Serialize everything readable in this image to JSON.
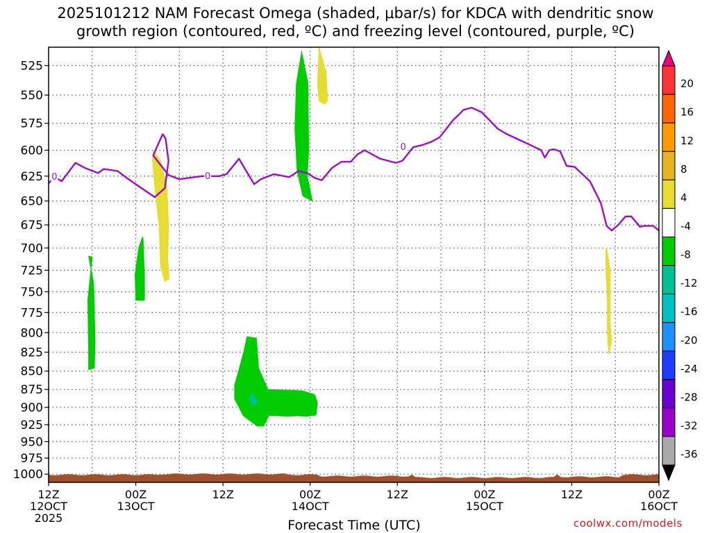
{
  "title": {
    "line1": "2025101212 NAM Forecast Omega (shaded, μbar/s) for KDCA with dendritic snow",
    "line2": "growth region (contoured, red, ºC) and freezing level (contoured, purple, ºC)"
  },
  "credit": "coolwx.com/models",
  "chart_data": {
    "type": "time-height",
    "xlabel": "Forecast Time (UTC)",
    "ylabel": "",
    "ylim": [
      1013,
      510
    ],
    "yscale": "log-pressure",
    "y_ticks": [
      525,
      550,
      575,
      600,
      625,
      650,
      675,
      700,
      725,
      750,
      775,
      800,
      825,
      850,
      875,
      900,
      925,
      950,
      975,
      1000
    ],
    "xlim_hours": [
      0,
      84
    ],
    "x_ticks": [
      {
        "h": 0,
        "lines": [
          "12Z",
          "12OCT",
          "2025"
        ]
      },
      {
        "h": 12,
        "lines": [
          "00Z",
          "13OCT"
        ]
      },
      {
        "h": 24,
        "lines": [
          "12Z"
        ]
      },
      {
        "h": 36,
        "lines": [
          "00Z",
          "14OCT"
        ]
      },
      {
        "h": 48,
        "lines": [
          "12Z"
        ]
      },
      {
        "h": 60,
        "lines": [
          "00Z",
          "15OCT"
        ]
      },
      {
        "h": 72,
        "lines": [
          "12Z"
        ]
      },
      {
        "h": 84,
        "lines": [
          "00Z",
          "16OCT"
        ]
      }
    ],
    "grid": true,
    "freezing_level": {
      "color": "#9a0fc4",
      "label": "0",
      "points": [
        [
          0,
          632
        ],
        [
          0.8,
          626
        ],
        [
          1.8,
          630
        ],
        [
          3.7,
          612
        ],
        [
          5,
          617
        ],
        [
          6.8,
          622
        ],
        [
          7.6,
          618
        ],
        [
          9.5,
          620
        ],
        [
          10.8,
          627
        ],
        [
          13.2,
          639
        ],
        [
          14.6,
          646
        ],
        [
          16,
          637
        ],
        [
          16.5,
          610
        ],
        [
          16.1,
          589
        ],
        [
          15.7,
          585
        ],
        [
          15.1,
          594
        ],
        [
          14.4,
          605
        ],
        [
          16.5,
          624
        ],
        [
          18,
          628
        ],
        [
          21.1,
          625
        ],
        [
          22,
          625
        ],
        [
          23.5,
          625
        ],
        [
          24.5,
          623
        ],
        [
          26.2,
          608
        ],
        [
          27.2,
          620
        ],
        [
          28.3,
          633
        ],
        [
          29.2,
          628
        ],
        [
          31,
          623
        ],
        [
          33.1,
          626
        ],
        [
          34.4,
          620
        ],
        [
          35.6,
          622
        ],
        [
          36.7,
          627
        ],
        [
          37.6,
          629
        ],
        [
          39,
          617
        ],
        [
          40.3,
          611
        ],
        [
          41.6,
          611
        ],
        [
          42.5,
          604
        ],
        [
          43.5,
          600
        ],
        [
          45.6,
          608
        ],
        [
          47.8,
          612
        ],
        [
          48.7,
          610
        ],
        [
          50.2,
          597
        ],
        [
          51.5,
          595
        ],
        [
          52.7,
          592
        ],
        [
          53.8,
          588
        ],
        [
          55.7,
          572
        ],
        [
          56.5,
          567
        ],
        [
          57.1,
          563
        ],
        [
          58.2,
          561
        ],
        [
          59.6,
          565
        ],
        [
          60.8,
          573
        ],
        [
          61.8,
          580
        ],
        [
          63.1,
          585
        ],
        [
          64.7,
          590
        ],
        [
          66.6,
          596
        ],
        [
          67.8,
          600
        ],
        [
          68.3,
          607
        ],
        [
          68.9,
          600
        ],
        [
          69.5,
          599
        ],
        [
          70.4,
          601
        ],
        [
          71.3,
          615
        ],
        [
          72.4,
          616
        ],
        [
          74.5,
          630
        ],
        [
          76,
          652
        ],
        [
          76.8,
          676
        ],
        [
          77.5,
          681
        ],
        [
          78.4,
          675
        ],
        [
          79.4,
          666
        ],
        [
          80.2,
          666
        ],
        [
          81.4,
          677
        ],
        [
          82,
          676
        ],
        [
          83.2,
          676
        ],
        [
          84,
          681
        ]
      ]
    },
    "omega_shaded": [
      {
        "category": "-8 to -4",
        "color": "#00cc00",
        "points": [
          [
            5.5,
            709
          ],
          [
            6.2,
            740
          ],
          [
            6.4,
            812
          ],
          [
            6.3,
            846
          ],
          [
            5.5,
            848
          ],
          [
            5.5,
            822
          ],
          [
            5.4,
            760
          ],
          [
            6.0,
            710
          ]
        ]
      },
      {
        "category": "-8 to -4",
        "color": "#00cc00",
        "points": [
          [
            13.0,
            689
          ],
          [
            13.2,
            730
          ],
          [
            13.2,
            760
          ],
          [
            12.0,
            760
          ],
          [
            11.9,
            730
          ],
          [
            12.4,
            700
          ],
          [
            12.9,
            688
          ]
        ]
      },
      {
        "category": "-8 to -4",
        "color": "#00cc00",
        "points": [
          [
            34.8,
            513
          ],
          [
            35.7,
            540
          ],
          [
            35.8,
            600
          ],
          [
            35.6,
            625
          ],
          [
            36.3,
            650
          ],
          [
            35.0,
            645
          ],
          [
            34.2,
            620
          ],
          [
            33.9,
            580
          ],
          [
            34.1,
            540
          ],
          [
            34.8,
            515
          ]
        ]
      },
      {
        "category": "-8 to -4",
        "color": "#00cc00",
        "points": [
          [
            27.3,
            805
          ],
          [
            28.6,
            807
          ],
          [
            28.9,
            846
          ],
          [
            30.2,
            875
          ],
          [
            33.1,
            876
          ],
          [
            35.0,
            877
          ],
          [
            36.6,
            882
          ],
          [
            37.0,
            893
          ],
          [
            36.8,
            911
          ],
          [
            35.5,
            913
          ],
          [
            34.2,
            912
          ],
          [
            32.9,
            913
          ],
          [
            31.5,
            912
          ],
          [
            30.3,
            912
          ],
          [
            29.6,
            927
          ],
          [
            28.7,
            927
          ],
          [
            26.8,
            912
          ],
          [
            25.6,
            888
          ],
          [
            25.6,
            869
          ],
          [
            26.2,
            848
          ],
          [
            26.9,
            823
          ]
        ]
      },
      {
        "category": "-12 to -8",
        "color": "#00c090",
        "points": [
          [
            28.0,
            880
          ],
          [
            28.8,
            892
          ],
          [
            28.2,
            898
          ],
          [
            27.6,
            888
          ]
        ]
      },
      {
        "category": "4 to 8",
        "color": "#e6dc32",
        "points": [
          [
            14.4,
            600
          ],
          [
            15.4,
            610
          ],
          [
            16.3,
            635
          ],
          [
            16.5,
            676
          ],
          [
            16.4,
            712
          ],
          [
            16.6,
            735
          ],
          [
            16.0,
            738
          ],
          [
            15.4,
            720
          ],
          [
            15.2,
            676
          ],
          [
            14.6,
            635
          ],
          [
            14.3,
            610
          ]
        ]
      },
      {
        "category": "4 to 8",
        "color": "#e6dc32",
        "points": [
          [
            37.1,
            508
          ],
          [
            38.2,
            530
          ],
          [
            38.4,
            555
          ],
          [
            38.0,
            558
          ],
          [
            37.2,
            555
          ],
          [
            37.0,
            540
          ],
          [
            37.2,
            515
          ]
        ]
      },
      {
        "category": "4 to 8",
        "color": "#e6dc32",
        "points": [
          [
            76.8,
            700
          ],
          [
            77.3,
            725
          ],
          [
            77.3,
            790
          ],
          [
            77.5,
            810
          ],
          [
            77.1,
            828
          ],
          [
            76.9,
            800
          ],
          [
            76.9,
            760
          ],
          [
            76.7,
            725
          ],
          [
            76.7,
            700
          ]
        ]
      }
    ],
    "surface": {
      "color": "#a0522d"
    },
    "colorbar": {
      "labels": [
        "20",
        "16",
        "12",
        "8",
        "4",
        "-4",
        "-8",
        "-12",
        "-16",
        "-20",
        "-24",
        "-28",
        "-32",
        "-36"
      ],
      "colors": [
        "#e8007e",
        "#ff3333",
        "#ff6600",
        "#ff9a00",
        "#e6b422",
        "#e6dc32",
        "#ffffff",
        "#00cc00",
        "#00c090",
        "#00c0c0",
        "#1e90ff",
        "#1e3cff",
        "#6a00cc",
        "#9a00c8",
        "#aaaaaa",
        "#000000"
      ]
    }
  }
}
